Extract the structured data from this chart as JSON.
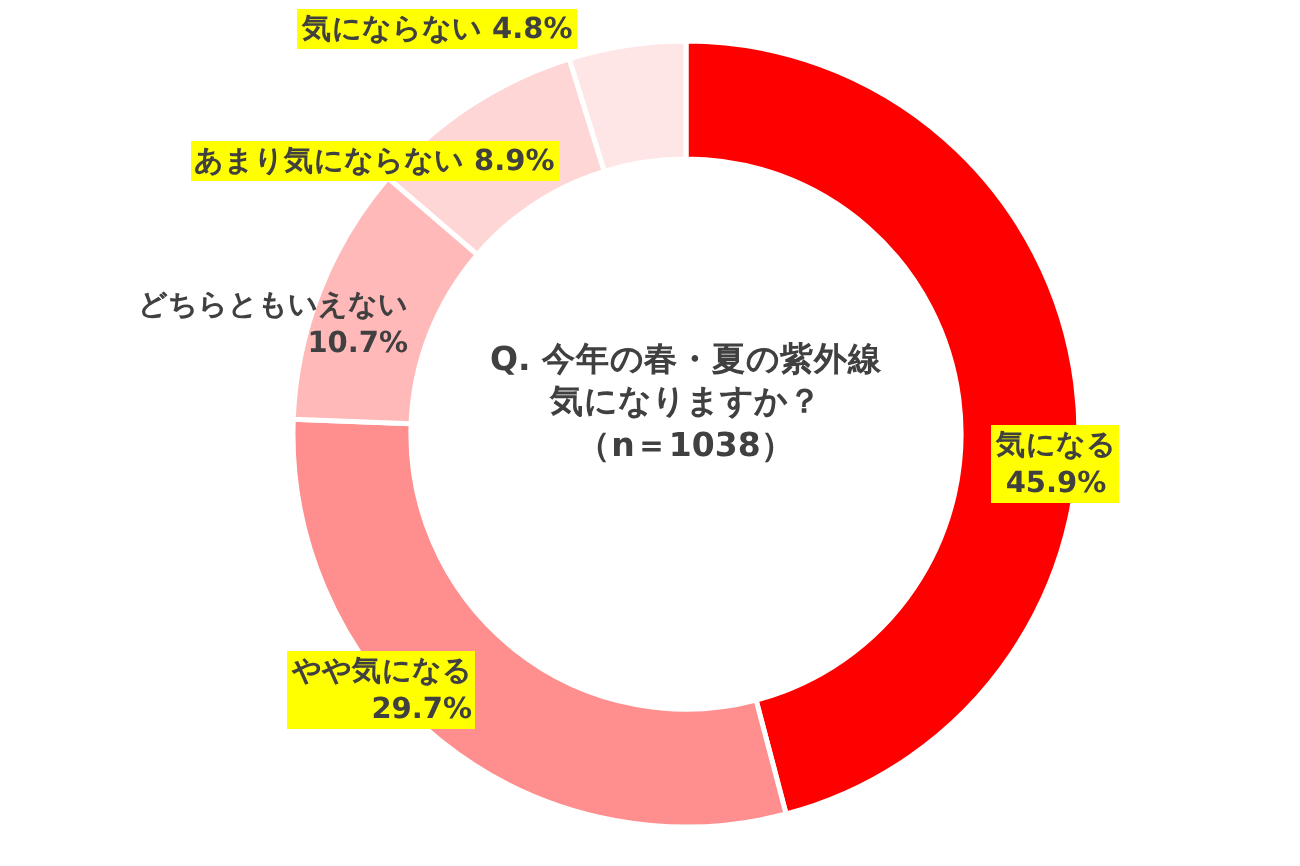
{
  "chart_data": {
    "type": "donut",
    "title": "Q. 今年の春・夏の紫外線気になりますか？",
    "subtitle": "（n＝1038）",
    "categories": [
      "気になる",
      "やや気になる",
      "どちらともいえない",
      "あまり気にならない",
      "気にならない"
    ],
    "values": [
      45.9,
      29.7,
      10.7,
      8.9,
      4.8
    ],
    "value_labels": [
      "45.9%",
      "29.7%",
      "10.7%",
      "8.9%",
      "4.8%"
    ],
    "colors": [
      "#ff0000",
      "#ff8f8f",
      "#ffb9b9",
      "#ffd6d6",
      "#ffe6e6"
    ],
    "legend": false
  }
}
